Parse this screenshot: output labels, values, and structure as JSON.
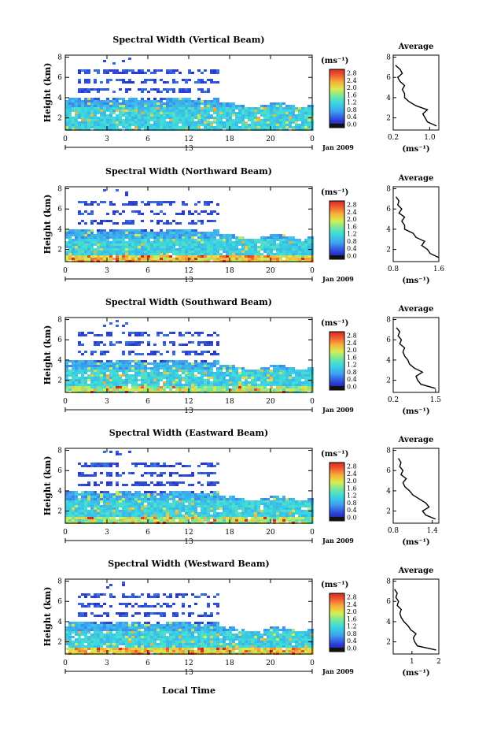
{
  "figure": {
    "xlabel": "Local Time",
    "time_ticks": [
      "0",
      "3",
      "6",
      "12",
      "18",
      "20",
      "0"
    ],
    "date_tick": "13",
    "date_label": "Jan 2009",
    "height_ticks": [
      "2",
      "4",
      "6",
      "8"
    ],
    "ylabel": "Height (km)",
    "unit_label": "(ms⁻¹)",
    "colorbar_ticks": [
      "0.0",
      "0.4",
      "0.8",
      "1.2",
      "1.6",
      "2.0",
      "2.4",
      "2.8"
    ],
    "average_title": "Average",
    "average_xlabel": "(ms⁻¹)",
    "average_height_ticks": [
      "2",
      "4",
      "6",
      "8"
    ]
  },
  "chart_data": [
    {
      "type": "heatmap",
      "title": "Spectral Width (Vertical Beam)",
      "xlabel": "",
      "ylabel": "Height (km)",
      "ylim": [
        0.8,
        8.2
      ],
      "colorbar_ticks": [
        "0.0",
        "0.4",
        "0.8",
        "1.2",
        "1.6",
        "2.0",
        "2.4",
        "2.8"
      ],
      "average_profile": {
        "title": "Average",
        "xlabel": "(ms⁻¹)",
        "xticks": [
          "0.2",
          "1.0"
        ],
        "xlim": [
          0.2,
          1.2
        ],
        "height": [
          1.2,
          1.6,
          2.0,
          2.4,
          2.8,
          3.2,
          3.6,
          4.0,
          4.4,
          4.8,
          5.2,
          5.6,
          6.0,
          6.4,
          6.8,
          7.2
        ],
        "value": [
          1.15,
          0.95,
          0.9,
          0.85,
          0.95,
          0.7,
          0.55,
          0.45,
          0.45,
          0.4,
          0.45,
          0.35,
          0.3,
          0.4,
          0.35,
          0.25
        ]
      }
    },
    {
      "type": "heatmap",
      "title": "Spectral Width (Northward Beam)",
      "xlabel": "",
      "ylabel": "Height (km)",
      "ylim": [
        0.8,
        8.2
      ],
      "colorbar_ticks": [
        "0.0",
        "0.4",
        "0.8",
        "1.2",
        "1.6",
        "2.0",
        "2.4",
        "2.8"
      ],
      "average_profile": {
        "title": "Average",
        "xlabel": "(ms⁻¹)",
        "xticks": [
          "0.8",
          "1.6"
        ],
        "xlim": [
          0.8,
          1.6
        ],
        "height": [
          1.2,
          1.6,
          2.0,
          2.4,
          2.8,
          3.2,
          3.6,
          4.0,
          4.4,
          4.8,
          5.2,
          5.6,
          6.0,
          6.4,
          6.8,
          7.2
        ],
        "value": [
          1.6,
          1.45,
          1.4,
          1.3,
          1.35,
          1.2,
          1.15,
          1.0,
          1.0,
          0.95,
          1.0,
          0.9,
          0.95,
          0.88,
          0.9,
          0.85
        ]
      }
    },
    {
      "type": "heatmap",
      "title": "Spectral Width (Southward Beam)",
      "xlabel": "",
      "ylabel": "Height (km)",
      "ylim": [
        0.8,
        8.2
      ],
      "colorbar_ticks": [
        "0.0",
        "0.4",
        "0.8",
        "1.2",
        "1.6",
        "2.0",
        "2.4",
        "2.8"
      ],
      "average_profile": {
        "title": "Average",
        "xlabel": "(ms⁻¹)",
        "xticks": [
          "0.2",
          "1.5"
        ],
        "xlim": [
          0.2,
          1.6
        ],
        "height": [
          1.2,
          1.6,
          2.0,
          2.4,
          2.8,
          3.2,
          3.6,
          4.0,
          4.4,
          4.8,
          5.2,
          5.6,
          6.0,
          6.4,
          6.8,
          7.2
        ],
        "value": [
          1.5,
          1.05,
          0.95,
          0.9,
          1.1,
          0.85,
          0.7,
          0.65,
          0.55,
          0.5,
          0.55,
          0.4,
          0.45,
          0.35,
          0.4,
          0.3
        ]
      }
    },
    {
      "type": "heatmap",
      "title": "Spectral Width (Eastward Beam)",
      "xlabel": "",
      "ylabel": "Height (km)",
      "ylim": [
        0.8,
        8.2
      ],
      "colorbar_ticks": [
        "0.0",
        "0.4",
        "0.8",
        "1.2",
        "1.6",
        "2.0",
        "2.4",
        "2.8"
      ],
      "average_profile": {
        "title": "Average",
        "xlabel": "(ms⁻¹)",
        "xticks": [
          "0.8",
          "1.4"
        ],
        "xlim": [
          0.8,
          1.5
        ],
        "height": [
          1.2,
          1.6,
          2.0,
          2.4,
          2.8,
          3.2,
          3.6,
          4.0,
          4.4,
          4.8,
          5.2,
          5.6,
          6.0,
          6.4,
          6.8,
          7.2
        ],
        "value": [
          1.45,
          1.3,
          1.25,
          1.35,
          1.3,
          1.2,
          1.1,
          1.05,
          0.98,
          0.95,
          1.0,
          0.92,
          0.95,
          0.9,
          0.92,
          0.88
        ]
      }
    },
    {
      "type": "heatmap",
      "title": "Spectral Width (Westward Beam)",
      "xlabel": "Local Time",
      "ylabel": "Height (km)",
      "ylim": [
        0.8,
        8.2
      ],
      "colorbar_ticks": [
        "0.0",
        "0.4",
        "0.8",
        "1.2",
        "1.6",
        "2.0",
        "2.4",
        "2.8"
      ],
      "average_profile": {
        "title": "Average",
        "xlabel": "(ms⁻¹)",
        "xticks": [
          "1",
          "2"
        ],
        "xlim": [
          0.3,
          2.0
        ],
        "height": [
          1.2,
          1.6,
          2.0,
          2.4,
          2.8,
          3.2,
          3.6,
          4.0,
          4.4,
          4.8,
          5.2,
          5.6,
          6.0,
          6.4,
          6.8,
          7.2
        ],
        "value": [
          1.9,
          1.2,
          1.1,
          1.05,
          1.15,
          0.95,
          0.85,
          0.7,
          0.6,
          0.55,
          0.6,
          0.45,
          0.5,
          0.4,
          0.45,
          0.35
        ]
      }
    }
  ]
}
